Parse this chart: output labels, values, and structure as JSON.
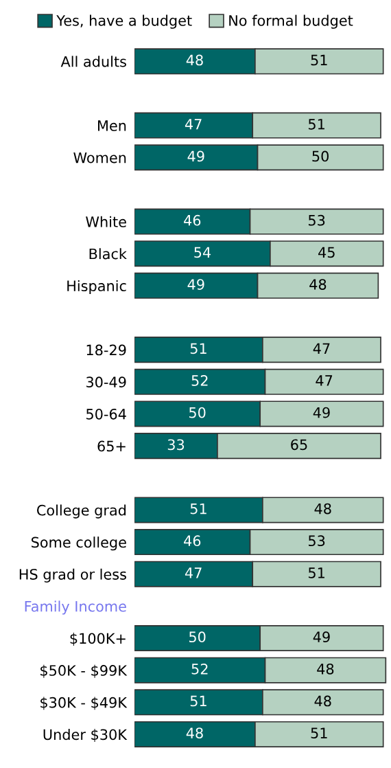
{
  "chart_data": {
    "type": "bar",
    "orientation": "horizontal",
    "stacked": true,
    "data_labels": true,
    "legend": "top",
    "grid": false,
    "tick_labels": "y",
    "categories": [
      "All adults",
      null,
      "Men",
      "Women",
      null,
      "White",
      "Black",
      "Hispanic",
      null,
      "18-29",
      "30-49",
      "50-64",
      "65+",
      null,
      "College grad",
      "Some college",
      "HS grad or less",
      "Family Income",
      "$100K+",
      "$50K - $99K",
      "$30K - $49K",
      "Under $30K"
    ],
    "series": [
      {
        "name": "Yes, have a budget",
        "color": "#006666",
        "values": [
          48,
          null,
          47,
          49,
          null,
          46,
          54,
          49,
          null,
          51,
          52,
          50,
          33,
          null,
          51,
          46,
          47,
          null,
          50,
          52,
          51,
          48
        ]
      },
      {
        "name": "No formal budget",
        "color": "#b5d1c1",
        "values": [
          51,
          null,
          51,
          50,
          null,
          53,
          45,
          48,
          null,
          47,
          47,
          49,
          65,
          null,
          48,
          53,
          51,
          null,
          49,
          48,
          48,
          51
        ]
      }
    ]
  }
}
